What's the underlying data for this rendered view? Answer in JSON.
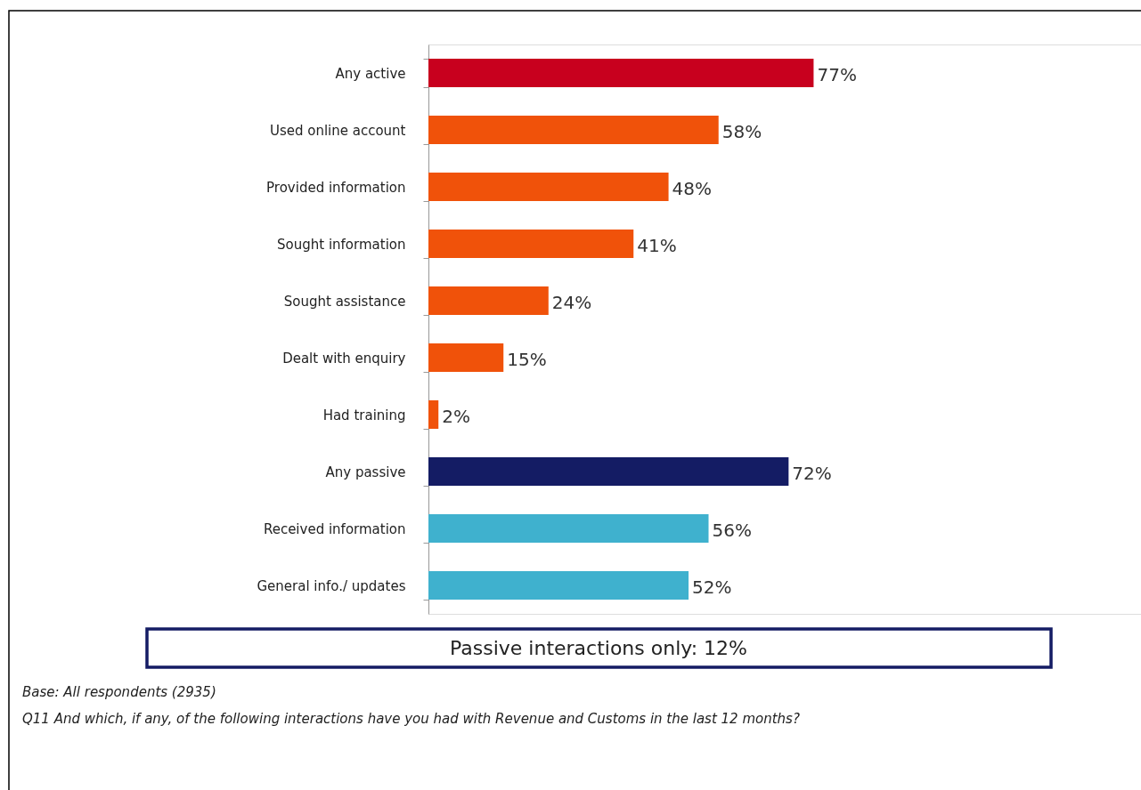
{
  "chart_data": {
    "type": "bar",
    "orientation": "horizontal",
    "categories": [
      "Any active",
      "Used online account",
      "Provided information",
      "Sought information",
      "Sought assistance",
      "Dealt with enquiry",
      "Had training",
      "Any passive",
      "Received information",
      "General info./ updates"
    ],
    "values": [
      77,
      58,
      48,
      41,
      24,
      15,
      2,
      72,
      56,
      52
    ],
    "colors": [
      "#c8001e",
      "#f0520a",
      "#f0520a",
      "#f0520a",
      "#f0520a",
      "#f0520a",
      "#f0520a",
      "#141c64",
      "#3fb1ce",
      "#3fb1ce"
    ],
    "value_labels": [
      "77%",
      "58%",
      "48%",
      "41%",
      "24%",
      "15%",
      "2%",
      "72%",
      "56%",
      "52%"
    ],
    "annotations": [
      "Passive interactions only: 12%",
      "Base: All respondents (2935)",
      "Q11 And which, if any, of the following interactions have you had with Revenue and Customs  in the last 12 months?"
    ]
  }
}
